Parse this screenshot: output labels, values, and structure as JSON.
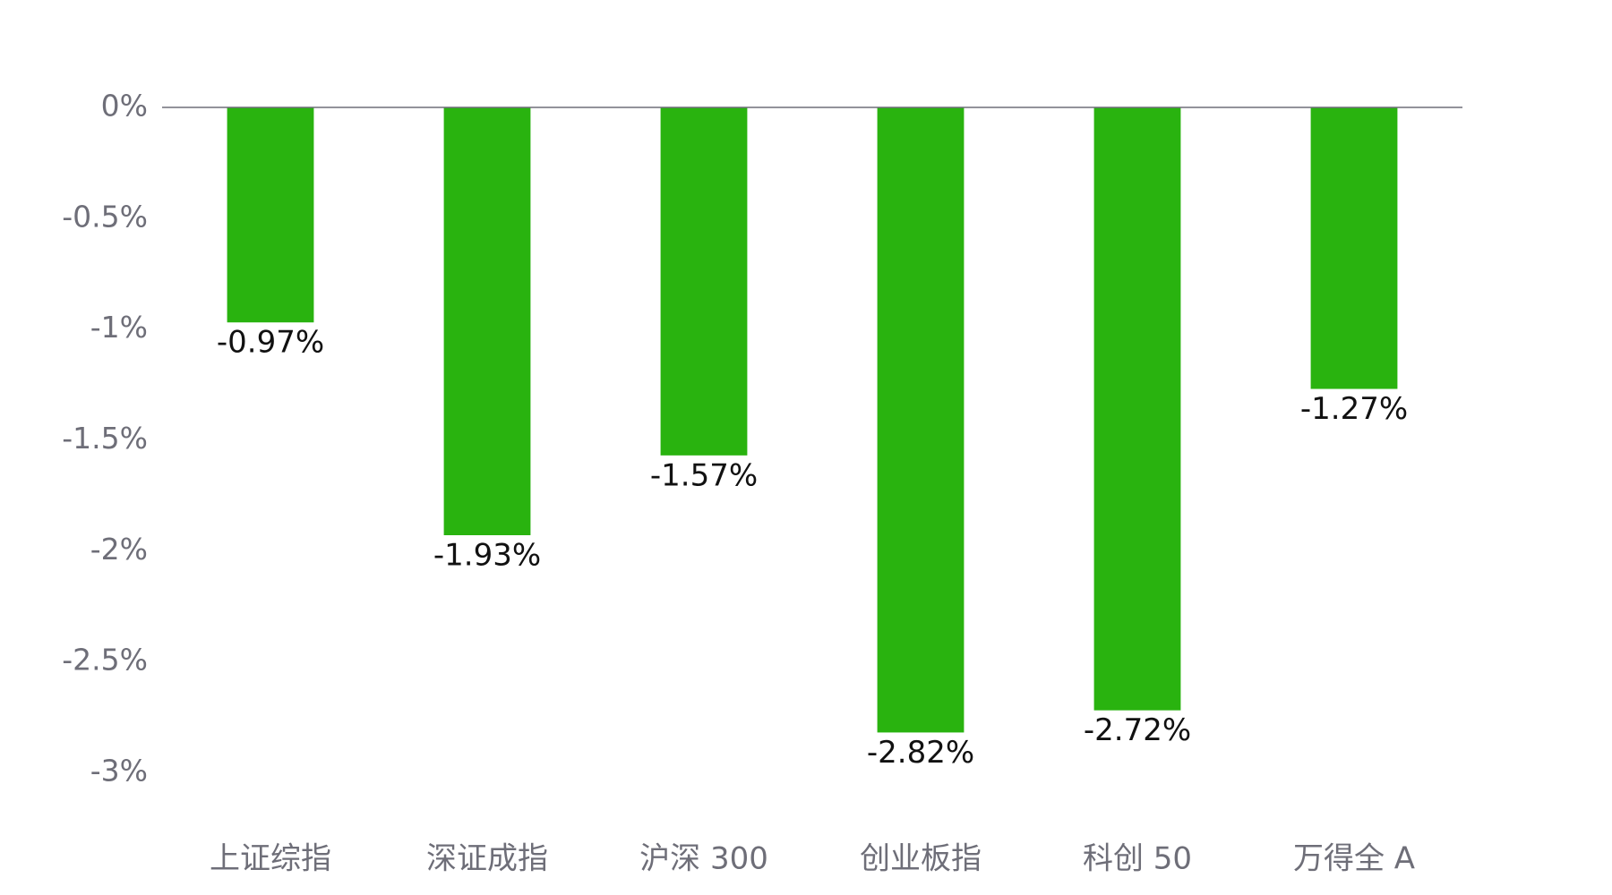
{
  "chart_data": {
    "type": "bar",
    "categories": [
      "上证综指",
      "深证成指",
      "沪深 300",
      "创业板指",
      "科创 50",
      "万得全 A"
    ],
    "values": [
      -0.97,
      -1.93,
      -1.57,
      -2.82,
      -2.72,
      -1.27
    ],
    "value_labels": [
      "-0.97%",
      "-1.93%",
      "-1.57%",
      "-2.82%",
      "-2.72%",
      "-1.27%"
    ],
    "color": "#29b30f",
    "ylim": [
      -3,
      0
    ],
    "yticks": [
      {
        "value": 0,
        "label": "0%"
      },
      {
        "value": -0.5,
        "label": "-0.5%"
      },
      {
        "value": -1,
        "label": "-1%"
      },
      {
        "value": -1.5,
        "label": "-1.5%"
      },
      {
        "value": -2,
        "label": "-2%"
      },
      {
        "value": -2.5,
        "label": "-2.5%"
      },
      {
        "value": -3,
        "label": "-3%"
      }
    ],
    "grid": false
  }
}
